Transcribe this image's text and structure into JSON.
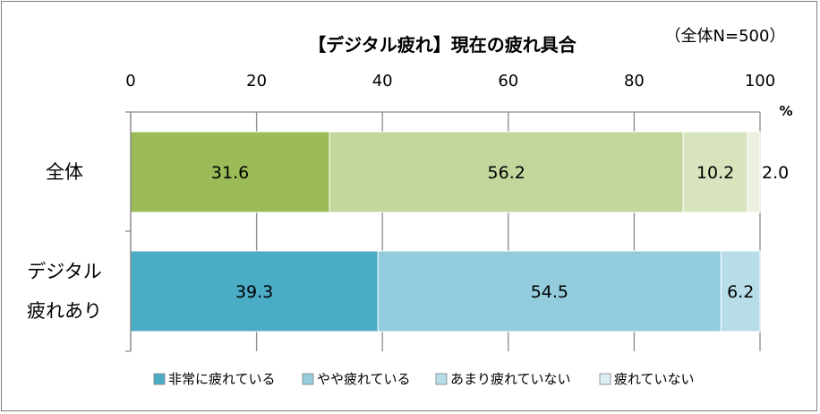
{
  "chart_data": {
    "type": "bar",
    "orientation": "horizontal",
    "stacked": true,
    "title": "【デジタル疲れ】現在の疲れ具合",
    "note": "（全体N=500）",
    "xlim": [
      0,
      100
    ],
    "x_ticks": [
      0,
      20,
      40,
      60,
      80,
      100
    ],
    "x_tick_labels": [
      "0",
      "20",
      "40",
      "60",
      "80",
      "100"
    ],
    "unit_label": "%",
    "grid": true,
    "legend_position": "bottom",
    "categories": [
      {
        "lines": [
          "全体"
        ]
      },
      {
        "lines": [
          "デジタル",
          "疲れあり"
        ]
      }
    ],
    "series": [
      {
        "name": "非常に疲れている",
        "color": "#4bacc6",
        "colors_by_category": [
          "#9bbb59",
          "#4bacc6"
        ],
        "values": [
          31.6,
          39.3
        ],
        "labels": [
          "31.6",
          "39.3"
        ]
      },
      {
        "name": "やや疲れている",
        "color": "#93cddd",
        "colors_by_category": [
          "#c3d69b",
          "#93cddd"
        ],
        "values": [
          56.2,
          54.5
        ],
        "labels": [
          "56.2",
          "54.5"
        ]
      },
      {
        "name": "あまり疲れていない",
        "color": "#b7dee8",
        "colors_by_category": [
          "#d7e4bd",
          "#b7dee8"
        ],
        "values": [
          10.2,
          6.2
        ],
        "labels": [
          "10.2",
          "6.2"
        ]
      },
      {
        "name": "疲れていない",
        "color": "#dbeef4",
        "colors_by_category": [
          "#ebf1de",
          "#dbeef4"
        ],
        "values": [
          2.0,
          0.0
        ],
        "labels": [
          "2.0",
          ""
        ]
      }
    ]
  }
}
